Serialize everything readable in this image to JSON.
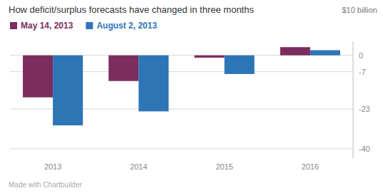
{
  "chart_data": {
    "type": "bar",
    "title": "How deficit/surplus forecasts have changed in three months",
    "ylabel": "$10 billion",
    "annotations": [
      "Made with Chartbuilder"
    ],
    "categories": [
      "2013",
      "2014",
      "2015",
      "2016"
    ],
    "series": [
      {
        "name": "May 14, 2013",
        "color": "#7b2d5e",
        "values": [
          -18,
          -11,
          -1.0,
          3.5
        ]
      },
      {
        "name": "August 2, 2013",
        "color": "#2e75b6",
        "values": [
          -30,
          -24,
          -8,
          2.2
        ]
      }
    ],
    "ylim": [
      -44,
      6
    ],
    "yticks": [
      0,
      -7,
      -23,
      -40
    ],
    "grid": true,
    "legend": "upper left"
  }
}
